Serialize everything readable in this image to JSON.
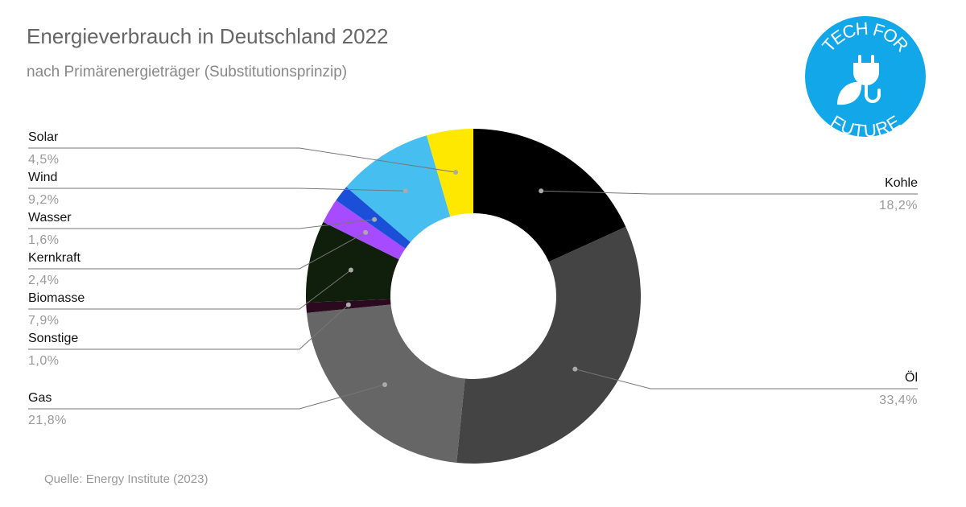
{
  "chart_data": {
    "type": "donut",
    "title": "Energieverbrauch in Deutschland 2022",
    "subtitle": "nach Primärenergieträger (Substitutionsprinzip)",
    "source": "Quelle: Energy Institute (2023)",
    "categories": [
      "Kohle",
      "Öl",
      "Gas",
      "Sonstige",
      "Biomasse",
      "Kernkraft",
      "Wasser",
      "Wind",
      "Solar"
    ],
    "values": [
      18.2,
      33.4,
      21.8,
      1.0,
      7.9,
      2.4,
      1.6,
      9.2,
      4.5
    ],
    "value_labels": [
      "18,2%",
      "33,4%",
      "21,8%",
      "1,0%",
      "7,9%",
      "2,4%",
      "1,6%",
      "9,2%",
      "4,5%"
    ],
    "colors": [
      "#000000",
      "#444444",
      "#666666",
      "#2b0a20",
      "#0f1f0c",
      "#a64bff",
      "#1b4fd8",
      "#47bef0",
      "#ffe800"
    ]
  },
  "logo": {
    "top": "TECH FOR",
    "bottom": "FUTURE"
  }
}
